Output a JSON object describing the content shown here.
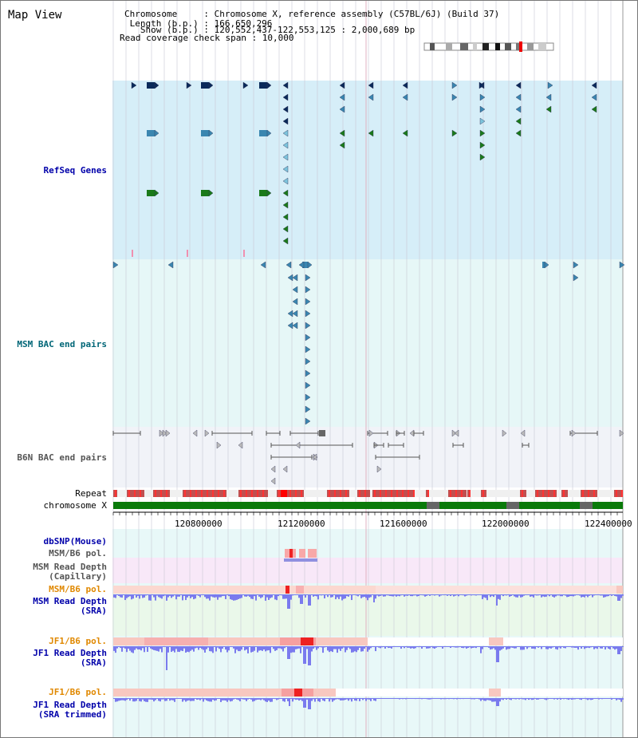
{
  "header": {
    "title": "Map View",
    "chromosome_line": "Chromosome     : Chromosome X, reference assembly (C57BL/6J) (Build 37)",
    "length_line": " Length (b.p.) : 166,650,296",
    "show_line": "   Show (b.p.) : 120,552,437-122,553,125 : 2,000,689 bp",
    "coverage_line": "Read coverage check span : 10,000"
  },
  "tracks": {
    "refseq": {
      "label": "RefSeq Genes",
      "color": "#0000aa",
      "bg": "#d6eef8"
    },
    "msm_bac": {
      "label": "MSM BAC end pairs",
      "color": "#006677",
      "bg": "#e6f7f7"
    },
    "b6n_bac": {
      "label": "B6N BAC end pairs",
      "color": "#555555",
      "bg": "#f1f3f8"
    },
    "repeat": {
      "label": "Repeat"
    },
    "chromosome": {
      "label": "chromosome X"
    },
    "dbsnp": {
      "label": "dbSNP(Mouse)",
      "color": "#0000aa"
    },
    "msm_b6_pol_1": {
      "label": "MSM/B6 pol.",
      "color": "#555555"
    },
    "msm_depth_cap": {
      "label": "MSM Read Depth",
      "label2": "(Capillary)",
      "color": "#555555",
      "bg": "#f8e8f8"
    },
    "msm_b6_pol_2": {
      "label": "MSM/B6 pol.",
      "color": "#e08800"
    },
    "msm_depth_sra": {
      "label": "MSM Read Depth",
      "label2": "(SRA)",
      "color": "#0000aa",
      "bg": "#eaf8ea"
    },
    "jf1_b6_pol_1": {
      "label": "JF1/B6 pol.",
      "color": "#e08800"
    },
    "jf1_depth_sra": {
      "label": "JF1 Read Depth",
      "label2": "(SRA)",
      "color": "#0000aa"
    },
    "jf1_b6_pol_2": {
      "label": "JF1/B6 pol.",
      "color": "#e08800"
    },
    "jf1_depth_trim": {
      "label": "JF1 Read Depth",
      "label2": "(SRA trimmed)",
      "color": "#0000aa"
    }
  },
  "axis": {
    "ticks": [
      "120800000",
      "121200000",
      "121600000",
      "122000000",
      "122400000"
    ]
  },
  "colors": {
    "gene_dark": "#0a2a5a",
    "gene_mid": "#3a86b0",
    "gene_light": "#7cc4dc",
    "gene_green": "#1a7a1a",
    "chromosome_bar": "#0a7a0a",
    "depth_bar": "#7a7aee",
    "pol_light": "#f8c8c0",
    "pol_dark": "#ee2222"
  }
}
